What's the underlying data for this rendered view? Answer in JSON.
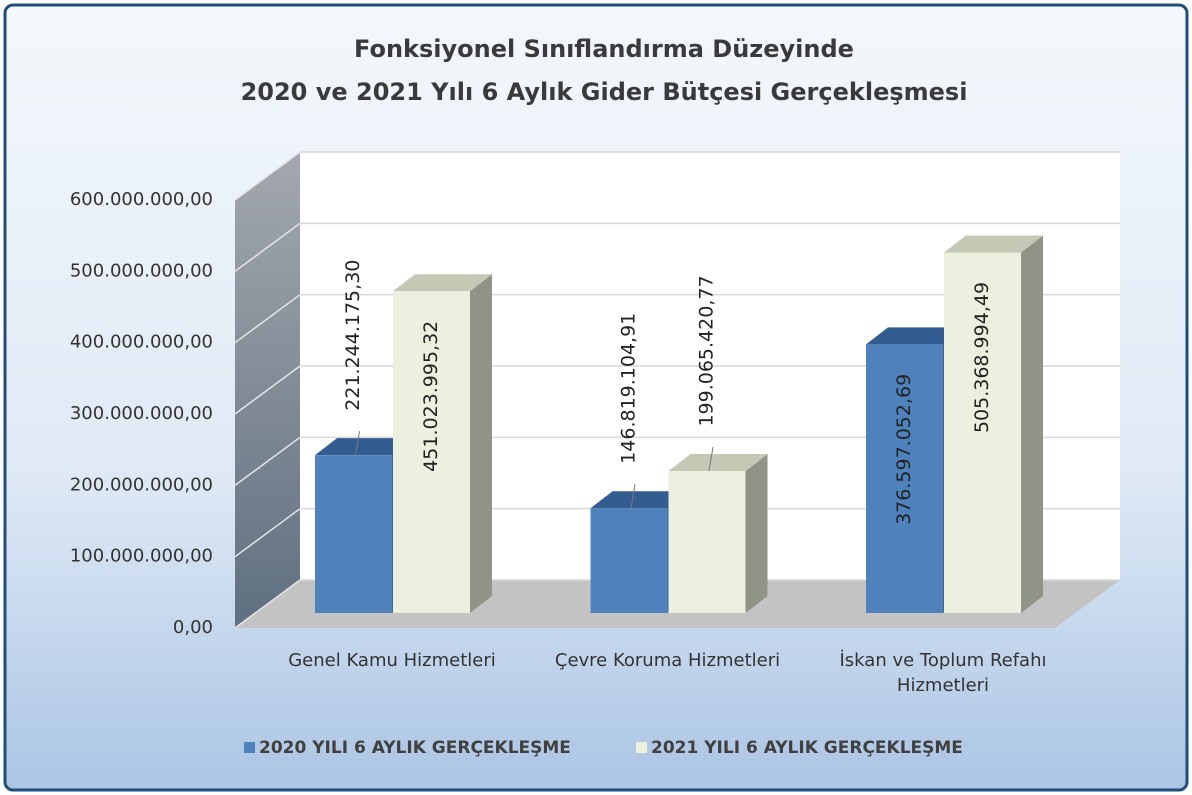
{
  "chart_data": {
    "type": "bar3d",
    "title": [
      "Fonksiyonel Sınıflandırma Düzeyinde",
      "2020 ve 2021 Yılı 6 Aylık Gider Bütçesi Gerçekleşmesi"
    ],
    "categories": [
      "Genel Kamu Hizmetleri",
      "Çevre Koruma Hizmetleri",
      "İskan ve Toplum Refahı Hizmetleri"
    ],
    "series": [
      {
        "name": "2020 YILI 6 AYLIK GERÇEKLEŞME",
        "color": "#4f81bd",
        "side": "#3a6596",
        "topc": "#335d91",
        "values": [
          221244175.3,
          146819104.91,
          376597052.69
        ],
        "value_labels": [
          "221.244.175,30",
          "146.819.104,91",
          "376.597.052,69"
        ]
      },
      {
        "name": "2021 YILI 6 AYLIK GERÇEKLEŞME",
        "color": "#ebf1de",
        "side": "#8f9486",
        "topc": "#c4c9b6",
        "values": [
          451023995.32,
          199065420.77,
          505368994.49
        ],
        "value_labels": [
          "451.023.995,32",
          "199.065.420,77",
          "505.368.994,49"
        ]
      }
    ],
    "ylim": [
      0,
      600000000
    ],
    "yticks": [
      {
        "value": 0,
        "label": "0,00"
      },
      {
        "value": 100000000,
        "label": "100.000.000,00"
      },
      {
        "value": 200000000,
        "label": "200.000.000,00"
      },
      {
        "value": 300000000,
        "label": "300.000.000,00"
      },
      {
        "value": 400000000,
        "label": "400.000.000,00"
      },
      {
        "value": 500000000,
        "label": "500.000.000,00"
      },
      {
        "value": 600000000,
        "label": "600.000.000,00"
      }
    ],
    "grid": true,
    "legend": "bottom"
  }
}
